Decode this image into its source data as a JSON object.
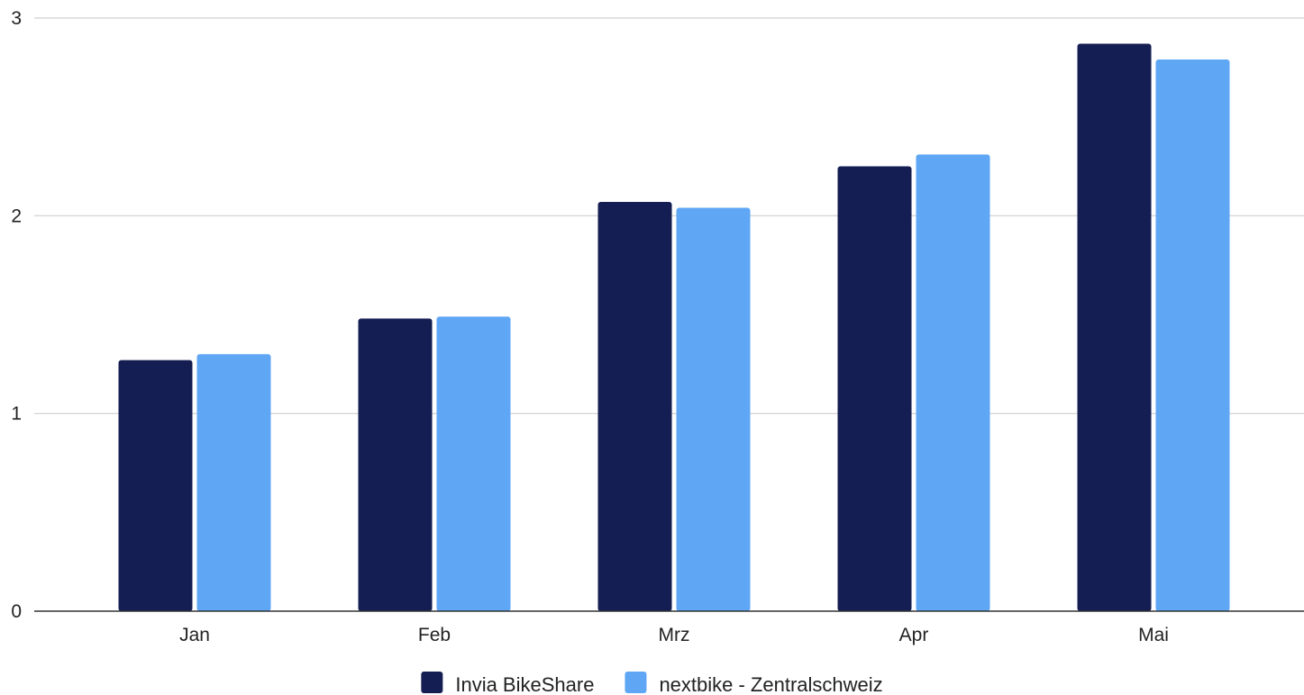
{
  "chart_data": {
    "type": "bar",
    "title": "",
    "xlabel": "",
    "ylabel": "",
    "categories": [
      "Jan",
      "Feb",
      "Mrz",
      "Apr",
      "Mai"
    ],
    "series": [
      {
        "name": "Invia BikeShare",
        "color": "#141e52",
        "values": [
          1.27,
          1.48,
          2.07,
          2.25,
          2.87
        ]
      },
      {
        "name": "nextbike - Zentralschweiz",
        "color": "#5fa6f5",
        "values": [
          1.3,
          1.49,
          2.04,
          2.31,
          2.79
        ]
      }
    ],
    "ylim": [
      0,
      3
    ],
    "yticks": [
      0,
      1,
      2,
      3
    ],
    "grid": true,
    "legend_position": "bottom-center"
  }
}
